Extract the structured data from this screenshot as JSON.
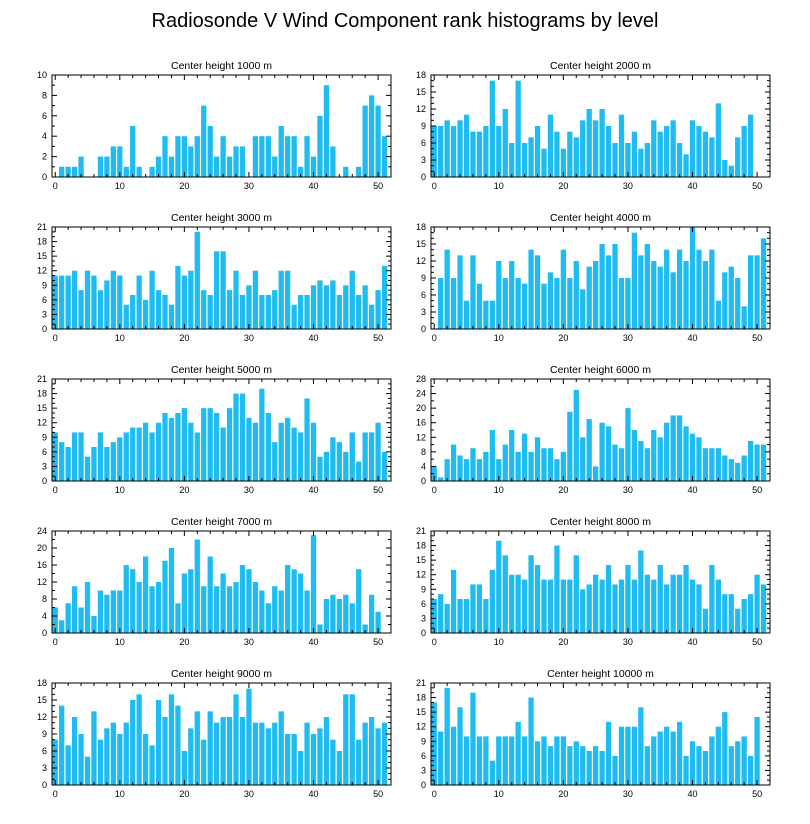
{
  "title": "Radiosonde V Wind Component rank histograms by level",
  "colors": {
    "bar": "#1ebcf0",
    "axis": "#000000",
    "background": "#ffffff"
  },
  "chart_data": [
    {
      "type": "bar",
      "title": "Center height 1000 m",
      "x": [
        0,
        1,
        2,
        3,
        4,
        5,
        6,
        7,
        8,
        9,
        10,
        11,
        12,
        13,
        14,
        15,
        16,
        17,
        18,
        19,
        20,
        21,
        22,
        23,
        24,
        25,
        26,
        27,
        28,
        29,
        30,
        31,
        32,
        33,
        34,
        35,
        36,
        37,
        38,
        39,
        40,
        41,
        42,
        43,
        44,
        45,
        46,
        47,
        48,
        49,
        50,
        51
      ],
      "values": [
        0,
        1,
        1,
        1,
        2,
        0,
        0,
        2,
        2,
        3,
        3,
        1,
        5,
        1,
        0,
        1,
        2,
        4,
        2,
        4,
        4,
        3,
        4,
        7,
        5,
        2,
        4,
        2,
        3,
        3,
        0,
        4,
        4,
        4,
        2,
        5,
        4,
        4,
        1,
        4,
        2,
        6,
        9,
        3,
        0,
        1,
        0,
        1,
        7,
        8,
        7,
        4
      ],
      "xlim": [
        -0.5,
        52
      ],
      "ylim": [
        0,
        10
      ],
      "xticks": [
        0,
        10,
        20,
        30,
        40,
        50
      ],
      "yticks": [
        0,
        2,
        4,
        6,
        8,
        10
      ]
    },
    {
      "type": "bar",
      "title": "Center height 2000 m",
      "x": [
        0,
        1,
        2,
        3,
        4,
        5,
        6,
        7,
        8,
        9,
        10,
        11,
        12,
        13,
        14,
        15,
        16,
        17,
        18,
        19,
        20,
        21,
        22,
        23,
        24,
        25,
        26,
        27,
        28,
        29,
        30,
        31,
        32,
        33,
        34,
        35,
        36,
        37,
        38,
        39,
        40,
        41,
        42,
        43,
        44,
        45,
        46,
        47,
        48,
        49,
        50,
        51
      ],
      "values": [
        9,
        9,
        10,
        9,
        10,
        11,
        8,
        8,
        9,
        17,
        9,
        12,
        6,
        17,
        6,
        7,
        9,
        5,
        11,
        8,
        5,
        8,
        7,
        10,
        12,
        10,
        12,
        9,
        6,
        11,
        6,
        8,
        5,
        6,
        10,
        8,
        9,
        10,
        6,
        4,
        10,
        9,
        8,
        7,
        13,
        3,
        2,
        7,
        9,
        11,
        0,
        0
      ],
      "xlim": [
        -0.5,
        52
      ],
      "ylim": [
        0,
        18
      ],
      "xticks": [
        0,
        10,
        20,
        30,
        40,
        50
      ],
      "yticks": [
        0,
        3,
        6,
        9,
        12,
        15,
        18
      ]
    },
    {
      "type": "bar",
      "title": "Center height 3000 m",
      "x": [
        0,
        1,
        2,
        3,
        4,
        5,
        6,
        7,
        8,
        9,
        10,
        11,
        12,
        13,
        14,
        15,
        16,
        17,
        18,
        19,
        20,
        21,
        22,
        23,
        24,
        25,
        26,
        27,
        28,
        29,
        30,
        31,
        32,
        33,
        34,
        35,
        36,
        37,
        38,
        39,
        40,
        41,
        42,
        43,
        44,
        45,
        46,
        47,
        48,
        49,
        50,
        51
      ],
      "values": [
        11,
        11,
        11,
        12,
        8,
        12,
        11,
        8,
        10,
        12,
        11,
        5,
        7,
        11,
        6,
        12,
        8,
        7,
        5,
        13,
        11,
        12,
        20,
        8,
        7,
        16,
        16,
        8,
        12,
        7,
        9,
        12,
        7,
        7,
        8,
        12,
        12,
        5,
        7,
        7,
        9,
        10,
        9,
        10,
        7,
        9,
        12,
        7,
        9,
        5,
        8,
        13
      ],
      "xlim": [
        -0.5,
        52
      ],
      "ylim": [
        0,
        21
      ],
      "xticks": [
        0,
        10,
        20,
        30,
        40,
        50
      ],
      "yticks": [
        0,
        3,
        6,
        9,
        12,
        15,
        18,
        21
      ]
    },
    {
      "type": "bar",
      "title": "Center height 4000 m",
      "x": [
        0,
        1,
        2,
        3,
        4,
        5,
        6,
        7,
        8,
        9,
        10,
        11,
        12,
        13,
        14,
        15,
        16,
        17,
        18,
        19,
        20,
        21,
        22,
        23,
        24,
        25,
        26,
        27,
        28,
        29,
        30,
        31,
        32,
        33,
        34,
        35,
        36,
        37,
        38,
        39,
        40,
        41,
        42,
        43,
        44,
        45,
        46,
        47,
        48,
        49,
        50,
        51
      ],
      "values": [
        0,
        9,
        14,
        9,
        13,
        5,
        13,
        8,
        5,
        5,
        12,
        9,
        12,
        9,
        8,
        14,
        13,
        8,
        10,
        9,
        14,
        9,
        12,
        7,
        11,
        12,
        15,
        13,
        15,
        9,
        9,
        17,
        13,
        15,
        12,
        11,
        14,
        10,
        14,
        12,
        18,
        14,
        12,
        14,
        5,
        10,
        11,
        9,
        4,
        13,
        13,
        16
      ],
      "xlim": [
        -0.5,
        52
      ],
      "ylim": [
        0,
        18
      ],
      "xticks": [
        0,
        10,
        20,
        30,
        40,
        50
      ],
      "yticks": [
        0,
        3,
        6,
        9,
        12,
        15,
        18
      ]
    },
    {
      "type": "bar",
      "title": "Center height 5000 m",
      "x": [
        0,
        1,
        2,
        3,
        4,
        5,
        6,
        7,
        8,
        9,
        10,
        11,
        12,
        13,
        14,
        15,
        16,
        17,
        18,
        19,
        20,
        21,
        22,
        23,
        24,
        25,
        26,
        27,
        28,
        29,
        30,
        31,
        32,
        33,
        34,
        35,
        36,
        37,
        38,
        39,
        40,
        41,
        42,
        43,
        44,
        45,
        46,
        47,
        48,
        49,
        50,
        51
      ],
      "values": [
        10,
        8,
        7,
        10,
        10,
        5,
        7,
        10,
        7,
        8,
        9,
        10,
        11,
        11,
        12,
        10,
        12,
        14,
        13,
        14,
        15,
        12,
        10,
        15,
        15,
        14,
        11,
        15,
        18,
        18,
        13,
        12,
        19,
        14,
        8,
        12,
        13,
        11,
        10,
        17,
        12,
        5,
        6,
        9,
        8,
        6,
        10,
        4,
        10,
        10,
        12,
        6
      ],
      "xlim": [
        -0.5,
        52
      ],
      "ylim": [
        0,
        21
      ],
      "xticks": [
        0,
        10,
        20,
        30,
        40,
        50
      ],
      "yticks": [
        0,
        3,
        6,
        9,
        12,
        15,
        18,
        21
      ]
    },
    {
      "type": "bar",
      "title": "Center height 6000 m",
      "x": [
        0,
        1,
        2,
        3,
        4,
        5,
        6,
        7,
        8,
        9,
        10,
        11,
        12,
        13,
        14,
        15,
        16,
        17,
        18,
        19,
        20,
        21,
        22,
        23,
        24,
        25,
        26,
        27,
        28,
        29,
        30,
        31,
        32,
        33,
        34,
        35,
        36,
        37,
        38,
        39,
        40,
        41,
        42,
        43,
        44,
        45,
        46,
        47,
        48,
        49,
        50,
        51
      ],
      "values": [
        4,
        1,
        6,
        10,
        7,
        6,
        9,
        6,
        8,
        14,
        6,
        10,
        14,
        8,
        13,
        8,
        12,
        9,
        9,
        6,
        8,
        19,
        25,
        12,
        17,
        4,
        16,
        15,
        10,
        9,
        20,
        14,
        11,
        9,
        14,
        12,
        16,
        18,
        18,
        15,
        13,
        12,
        9,
        9,
        9,
        7,
        6,
        5,
        7,
        11,
        10,
        10
      ],
      "xlim": [
        -0.5,
        52
      ],
      "ylim": [
        0,
        28
      ],
      "xticks": [
        0,
        10,
        20,
        30,
        40,
        50
      ],
      "yticks": [
        0,
        4,
        8,
        12,
        16,
        20,
        24,
        28
      ]
    },
    {
      "type": "bar",
      "title": "Center height 7000 m",
      "x": [
        0,
        1,
        2,
        3,
        4,
        5,
        6,
        7,
        8,
        9,
        10,
        11,
        12,
        13,
        14,
        15,
        16,
        17,
        18,
        19,
        20,
        21,
        22,
        23,
        24,
        25,
        26,
        27,
        28,
        29,
        30,
        31,
        32,
        33,
        34,
        35,
        36,
        37,
        38,
        39,
        40,
        41,
        42,
        43,
        44,
        45,
        46,
        47,
        48,
        49,
        50,
        51
      ],
      "values": [
        6,
        3,
        7,
        11,
        6,
        12,
        4,
        10,
        9,
        10,
        10,
        16,
        15,
        12,
        18,
        11,
        12,
        17,
        20,
        7,
        14,
        15,
        22,
        11,
        18,
        11,
        14,
        11,
        12,
        16,
        15,
        12,
        10,
        7,
        11,
        10,
        16,
        15,
        14,
        10,
        23,
        2,
        8,
        9,
        8,
        9,
        7,
        15,
        2,
        9,
        5,
        0
      ],
      "xlim": [
        -0.5,
        52
      ],
      "ylim": [
        0,
        24
      ],
      "xticks": [
        0,
        10,
        20,
        30,
        40,
        50
      ],
      "yticks": [
        0,
        4,
        8,
        12,
        16,
        20,
        24
      ]
    },
    {
      "type": "bar",
      "title": "Center height 8000 m",
      "x": [
        0,
        1,
        2,
        3,
        4,
        5,
        6,
        7,
        8,
        9,
        10,
        11,
        12,
        13,
        14,
        15,
        16,
        17,
        18,
        19,
        20,
        21,
        22,
        23,
        24,
        25,
        26,
        27,
        28,
        29,
        30,
        31,
        32,
        33,
        34,
        35,
        36,
        37,
        38,
        39,
        40,
        41,
        42,
        43,
        44,
        45,
        46,
        47,
        48,
        49,
        50,
        51
      ],
      "values": [
        7,
        8,
        6,
        13,
        7,
        7,
        10,
        10,
        7,
        13,
        19,
        16,
        12,
        12,
        11,
        16,
        14,
        11,
        11,
        18,
        11,
        11,
        16,
        9,
        10,
        12,
        11,
        14,
        10,
        11,
        14,
        11,
        17,
        12,
        11,
        14,
        10,
        12,
        12,
        14,
        11,
        10,
        5,
        14,
        11,
        8,
        8,
        5,
        7,
        8,
        12,
        10
      ],
      "xlim": [
        -0.5,
        52
      ],
      "ylim": [
        0,
        21
      ],
      "xticks": [
        0,
        10,
        20,
        30,
        40,
        50
      ],
      "yticks": [
        0,
        3,
        6,
        9,
        12,
        15,
        18,
        21
      ]
    },
    {
      "type": "bar",
      "title": "Center height 9000 m",
      "x": [
        0,
        1,
        2,
        3,
        4,
        5,
        6,
        7,
        8,
        9,
        10,
        11,
        12,
        13,
        14,
        15,
        16,
        17,
        18,
        19,
        20,
        21,
        22,
        23,
        24,
        25,
        26,
        27,
        28,
        29,
        30,
        31,
        32,
        33,
        34,
        35,
        36,
        37,
        38,
        39,
        40,
        41,
        42,
        43,
        44,
        45,
        46,
        47,
        48,
        49,
        50,
        51
      ],
      "values": [
        8,
        14,
        7,
        12,
        9,
        5,
        13,
        8,
        10,
        11,
        9,
        11,
        15,
        16,
        9,
        7,
        15,
        12,
        16,
        14,
        6,
        10,
        13,
        8,
        13,
        11,
        12,
        12,
        16,
        12,
        17,
        11,
        11,
        10,
        11,
        13,
        9,
        9,
        6,
        11,
        9,
        10,
        12,
        8,
        6,
        16,
        16,
        8,
        11,
        12,
        10,
        11
      ],
      "xlim": [
        -0.5,
        52
      ],
      "ylim": [
        0,
        18
      ],
      "xticks": [
        0,
        10,
        20,
        30,
        40,
        50
      ],
      "yticks": [
        0,
        3,
        6,
        9,
        12,
        15,
        18
      ]
    },
    {
      "type": "bar",
      "title": "Center height 10000 m",
      "x": [
        0,
        1,
        2,
        3,
        4,
        5,
        6,
        7,
        8,
        9,
        10,
        11,
        12,
        13,
        14,
        15,
        16,
        17,
        18,
        19,
        20,
        21,
        22,
        23,
        24,
        25,
        26,
        27,
        28,
        29,
        30,
        31,
        32,
        33,
        34,
        35,
        36,
        37,
        38,
        39,
        40,
        41,
        42,
        43,
        44,
        45,
        46,
        47,
        48,
        49,
        50,
        51
      ],
      "values": [
        17,
        11,
        20,
        12,
        16,
        10,
        19,
        10,
        10,
        5,
        10,
        10,
        10,
        13,
        10,
        18,
        9,
        10,
        8,
        10,
        10,
        8,
        9,
        8,
        7,
        8,
        7,
        13,
        6,
        12,
        12,
        12,
        16,
        8,
        10,
        11,
        12,
        11,
        13,
        6,
        9,
        8,
        7,
        10,
        12,
        15,
        8,
        9,
        10,
        6,
        14,
        0
      ],
      "xlim": [
        -0.5,
        52
      ],
      "ylim": [
        0,
        21
      ],
      "xticks": [
        0,
        10,
        20,
        30,
        40,
        50
      ],
      "yticks": [
        0,
        3,
        6,
        9,
        12,
        15,
        18,
        21
      ]
    }
  ]
}
